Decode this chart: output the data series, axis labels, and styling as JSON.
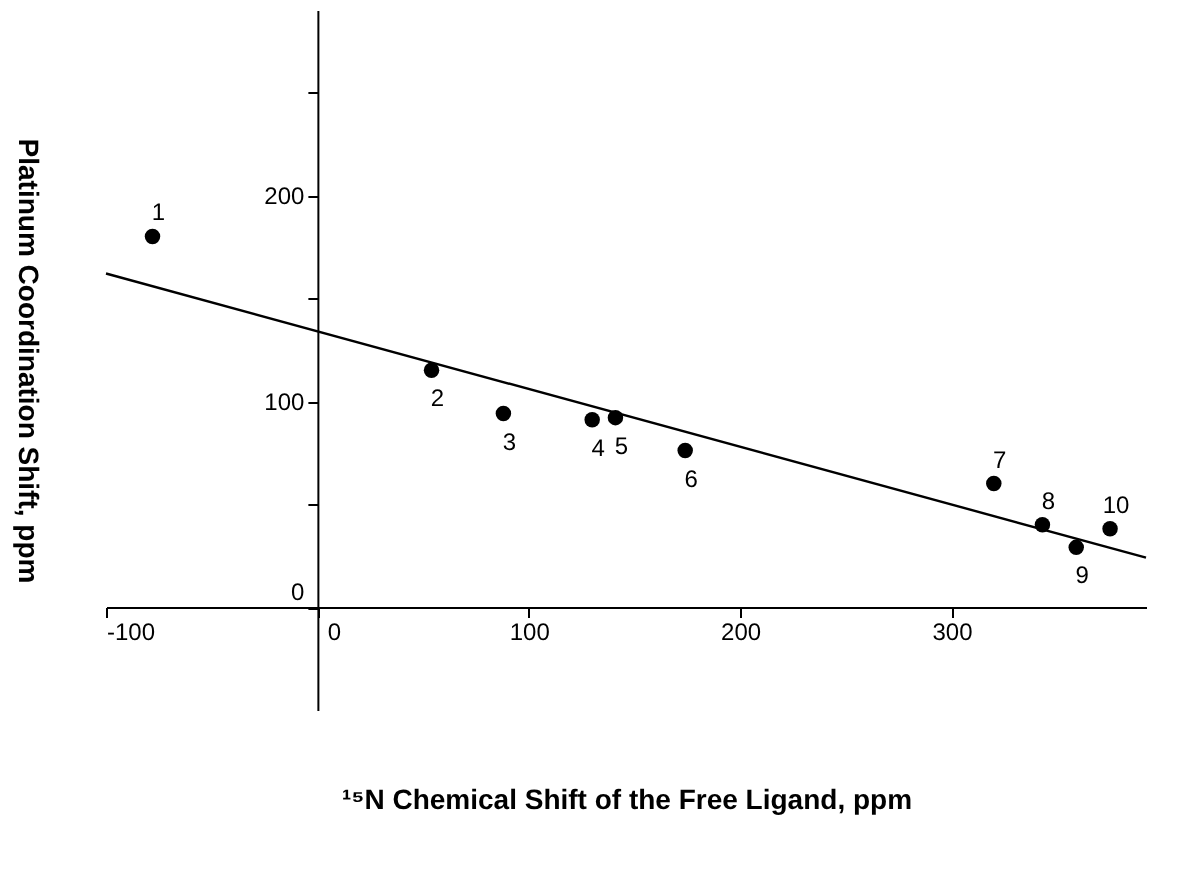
{
  "chart_data": {
    "type": "scatter",
    "xlabel": "¹⁵N Chemical Shift of the Free Ligand, ppm",
    "ylabel": "Platinum Coordination Shift, ppm",
    "series": [
      {
        "marker": "circle",
        "color": "#000000",
        "x": [
          -78,
          54,
          88,
          130,
          141,
          174,
          320,
          343,
          359,
          375
        ],
        "values": [
          180,
          115,
          94,
          91,
          92,
          76,
          60,
          40,
          29,
          38
        ]
      },
      {
        "type": "line",
        "color": "#000000",
        "line_style": "solid",
        "x": [
          -100,
          392
        ],
        "values": [
          162,
          24
        ]
      }
    ],
    "annotations": [
      {
        "text": "1",
        "x": -78,
        "y": 180
      },
      {
        "text": "2",
        "x": 54,
        "y": 115
      },
      {
        "text": "3",
        "x": 88,
        "y": 94
      },
      {
        "text": "4",
        "x": 130,
        "y": 91
      },
      {
        "text": "5",
        "x": 141,
        "y": 92
      },
      {
        "text": "6",
        "x": 174,
        "y": 76
      },
      {
        "text": "7",
        "x": 320,
        "y": 60
      },
      {
        "text": "8",
        "x": 343,
        "y": 40
      },
      {
        "text": "9",
        "x": 359,
        "y": 29
      },
      {
        "text": "10",
        "x": 375,
        "y": 38
      }
    ],
    "xlim": [
      -100,
      392
    ],
    "xticks": [
      -100,
      0,
      100,
      200,
      300
    ],
    "ylim": [
      -50,
      290
    ],
    "yticks": [
      0,
      {
        "value": 50,
        "label": null
      },
      100,
      {
        "value": 150,
        "label": null
      },
      200,
      {
        "value": 250,
        "label": null
      }
    ],
    "grid": false
  }
}
